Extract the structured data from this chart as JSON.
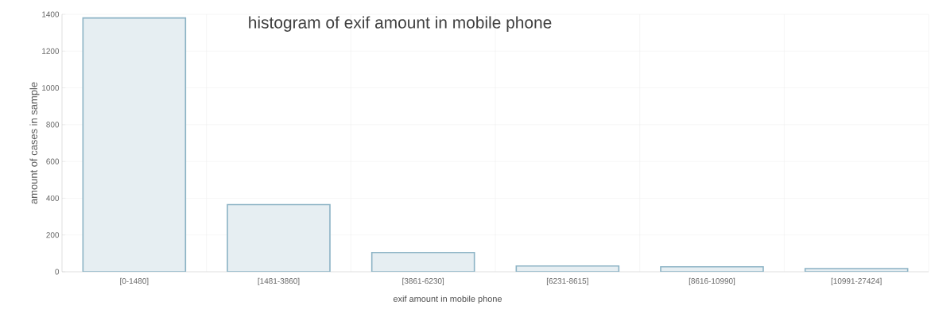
{
  "chart_data": {
    "type": "bar",
    "title": "histogram of exif amount in mobile phone",
    "xlabel": "exif amount in mobile phone",
    "ylabel": "amount of cases in sample",
    "categories": [
      "[0-1480]",
      "[1481-3860]",
      "[3861-6230]",
      "[6231-8615]",
      "[8616-10990]",
      "[10991-27424]"
    ],
    "values": [
      1380,
      365,
      105,
      31,
      27,
      17
    ],
    "color": "#e6eef2",
    "ylim": [
      0,
      1400
    ],
    "yticks": [
      0,
      200,
      400,
      600,
      800,
      1000,
      1200,
      1400
    ],
    "grid": true
  }
}
